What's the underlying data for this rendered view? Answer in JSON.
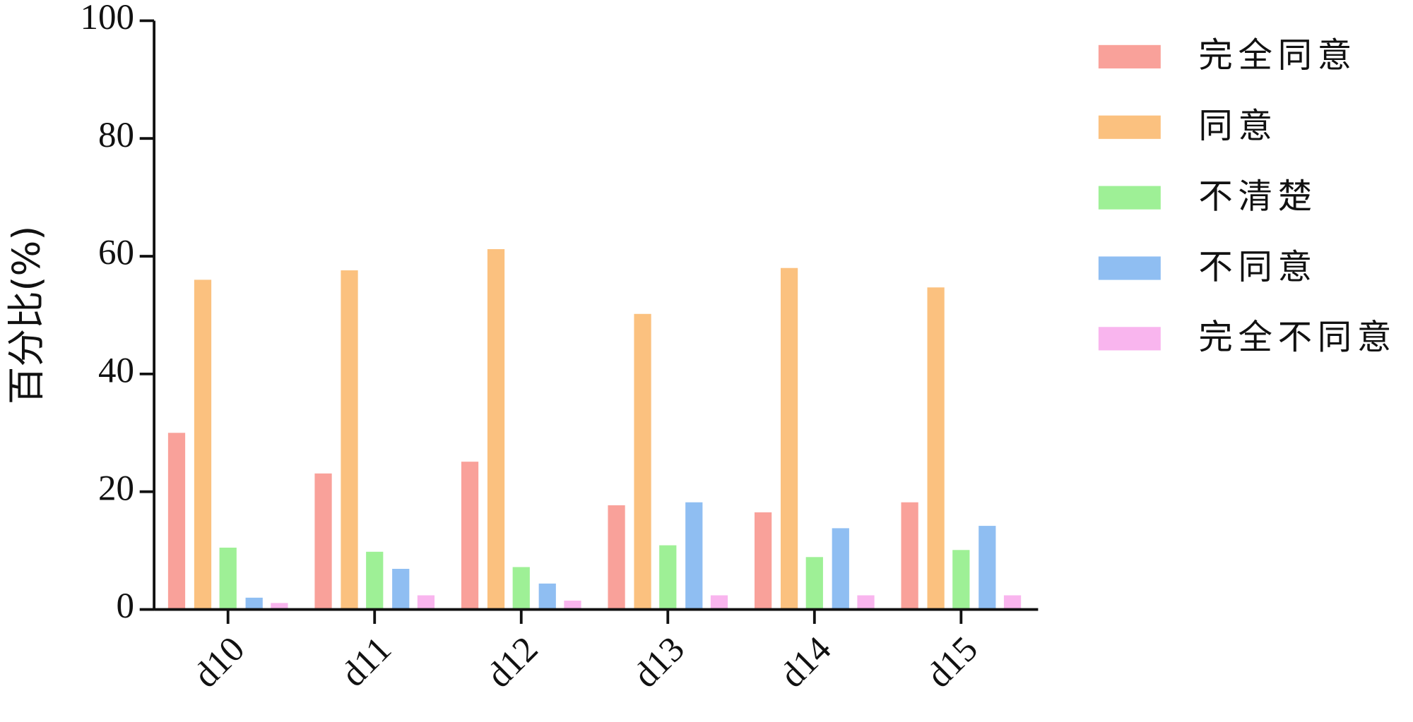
{
  "chart_data": {
    "type": "bar",
    "y_label": "百分比(%)",
    "categories": [
      "d10",
      "d11",
      "d12",
      "d13",
      "d14",
      "d15"
    ],
    "series": [
      {
        "name": "完全同意",
        "color": "#f9a19a",
        "values": [
          30.0,
          23.1,
          25.1,
          17.7,
          16.5,
          18.2
        ]
      },
      {
        "name": "同意",
        "color": "#fbc17f",
        "values": [
          56.0,
          57.6,
          61.2,
          50.2,
          58.0,
          54.7
        ]
      },
      {
        "name": "不清楚",
        "color": "#9ef096",
        "values": [
          10.5,
          9.8,
          7.2,
          10.9,
          8.9,
          10.1
        ]
      },
      {
        "name": "不同意",
        "color": "#8fbef2",
        "values": [
          2.0,
          6.9,
          4.4,
          18.2,
          13.8,
          14.2
        ]
      },
      {
        "name": "完全不同意",
        "color": "#f9b5ee",
        "values": [
          1.1,
          2.4,
          1.5,
          2.4,
          2.4,
          2.4
        ]
      }
    ],
    "ylim": [
      0,
      100
    ],
    "yticks": [
      0,
      20,
      40,
      60,
      80,
      100
    ],
    "grid": false,
    "legend": "right"
  }
}
